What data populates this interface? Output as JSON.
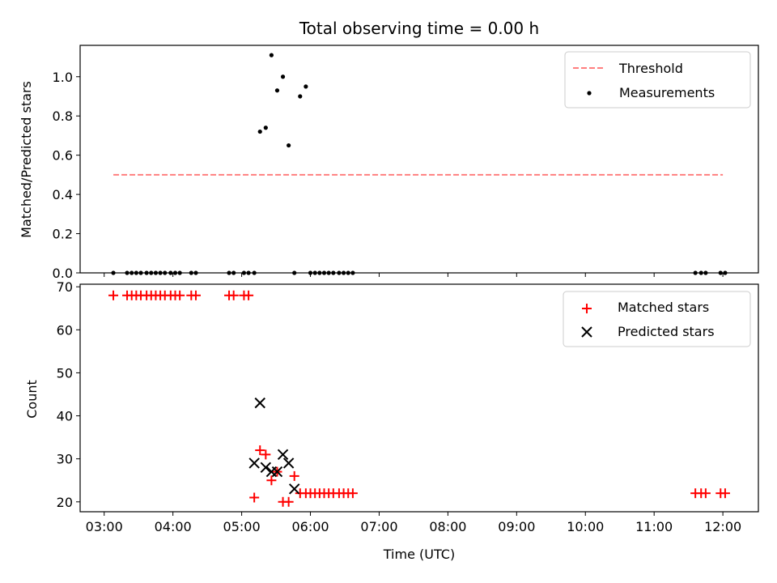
{
  "chart_data": [
    {
      "type": "scatter",
      "title": "Total observing time = 0.00 h",
      "xlabel": "",
      "ylabel": "Matched/Predicted stars",
      "xlim": [
        "02:39",
        "12:31"
      ],
      "ylim": [
        0,
        1.16
      ],
      "yticks": [
        0.0,
        0.2,
        0.4,
        0.6,
        0.8,
        1.0
      ],
      "ytick_labels": [
        "0.0",
        "0.2",
        "0.4",
        "0.6",
        "0.8",
        "1.0"
      ],
      "legend_placement": "upper right",
      "legend": [
        "Threshold",
        "Measurements"
      ],
      "threshold": {
        "name": "Threshold",
        "value": 0.5,
        "x_start": "03:08",
        "x_end": "12:00",
        "color": "#ff7f7f",
        "style": "dashed"
      },
      "series": [
        {
          "name": "Measurements",
          "marker": "dot",
          "color": "#000000",
          "x": [
            "03:08",
            "03:20",
            "03:24",
            "03:28",
            "03:32",
            "03:37",
            "03:41",
            "03:45",
            "03:49",
            "03:53",
            "03:58",
            "04:02",
            "04:06",
            "04:16",
            "04:20",
            "04:49",
            "04:53",
            "05:02",
            "05:06",
            "05:11",
            "05:16",
            "05:21",
            "05:26",
            "05:31",
            "05:36",
            "05:41",
            "05:46",
            "05:51",
            "05:56",
            "06:00",
            "06:04",
            "06:08",
            "06:12",
            "06:16",
            "06:20",
            "06:25",
            "06:29",
            "06:33",
            "06:37",
            "11:36",
            "11:41",
            "11:45",
            "11:58",
            "12:02"
          ],
          "y": [
            0,
            0,
            0,
            0,
            0,
            0,
            0,
            0,
            0,
            0,
            0,
            0,
            0,
            0,
            0,
            0,
            0,
            0,
            0,
            0,
            0.72,
            0.74,
            1.11,
            0.93,
            1.0,
            0.65,
            0,
            0.9,
            0.95,
            0,
            0,
            0,
            0,
            0,
            0,
            0,
            0,
            0,
            0,
            0,
            0,
            0,
            0,
            0
          ]
        }
      ]
    },
    {
      "type": "scatter",
      "title": "",
      "xlabel": "Time (UTC)",
      "ylabel": "Count",
      "xlim": [
        "02:39",
        "12:31"
      ],
      "ylim": [
        17.7,
        70.6
      ],
      "yticks": [
        20,
        30,
        40,
        50,
        60,
        70
      ],
      "ytick_labels": [
        "20",
        "30",
        "40",
        "50",
        "60",
        "70"
      ],
      "xticks": [
        "03:00",
        "04:00",
        "05:00",
        "06:00",
        "07:00",
        "08:00",
        "09:00",
        "10:00",
        "11:00",
        "12:00"
      ],
      "legend_placement": "upper right",
      "legend": [
        "Matched stars",
        "Predicted stars"
      ],
      "series": [
        {
          "name": "Matched stars",
          "marker": "plus",
          "color": "#ff0000",
          "x": [
            "03:08",
            "03:20",
            "03:24",
            "03:28",
            "03:32",
            "03:37",
            "03:41",
            "03:45",
            "03:49",
            "03:53",
            "03:58",
            "04:02",
            "04:06",
            "04:16",
            "04:20",
            "04:49",
            "04:53",
            "05:02",
            "05:06",
            "05:11",
            "05:16",
            "05:21",
            "05:26",
            "05:31",
            "05:36",
            "05:41",
            "05:46",
            "05:51",
            "05:56",
            "06:00",
            "06:04",
            "06:08",
            "06:12",
            "06:16",
            "06:20",
            "06:25",
            "06:29",
            "06:33",
            "06:37",
            "11:36",
            "11:41",
            "11:45",
            "11:58",
            "12:02"
          ],
          "y": [
            68,
            68,
            68,
            68,
            68,
            68,
            68,
            68,
            68,
            68,
            68,
            68,
            68,
            68,
            68,
            68,
            68,
            68,
            68,
            21,
            32,
            31,
            25,
            27,
            20,
            20,
            26,
            22,
            22,
            22,
            22,
            22,
            22,
            22,
            22,
            22,
            22,
            22,
            22,
            22,
            22,
            22,
            22,
            22
          ]
        },
        {
          "name": "Predicted stars",
          "marker": "x",
          "color": "#000000",
          "x": [
            "05:11",
            "05:16",
            "05:21",
            "05:26",
            "05:31",
            "05:36",
            "05:41",
            "05:46"
          ],
          "y": [
            29,
            43,
            28,
            27,
            27,
            31,
            29,
            23
          ]
        }
      ]
    }
  ]
}
